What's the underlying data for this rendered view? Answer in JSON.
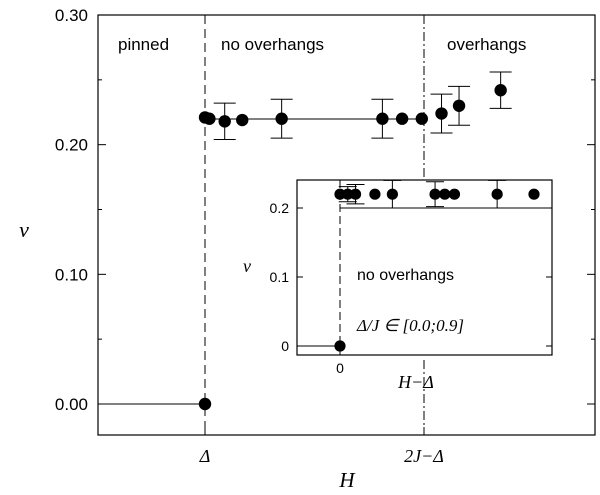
{
  "chart_data": [
    {
      "type": "scatter",
      "title": "",
      "xlabel": "H",
      "ylabel": "ν",
      "ylim": [
        0,
        0.3
      ],
      "yticks": [
        "0.00",
        "0.10",
        "0.20",
        "0.30"
      ],
      "xticks": [
        "Δ",
        "2J−Δ"
      ],
      "grid": false,
      "regions": [
        "pinned",
        "no overhangs",
        "overhangs"
      ],
      "series": [
        {
          "points": [
            {
              "x": 0.0,
              "y": 0.0
            },
            {
              "x": 0.0,
              "y": 0.221
            },
            {
              "x": 0.02,
              "y": 0.22
            },
            {
              "x": 0.09,
              "y": 0.218,
              "err": 0.014
            },
            {
              "x": 0.17,
              "y": 0.219
            },
            {
              "x": 0.35,
              "y": 0.22,
              "err": 0.015
            },
            {
              "x": 0.81,
              "y": 0.22,
              "err": 0.015
            },
            {
              "x": 0.9,
              "y": 0.22
            },
            {
              "x": 0.99,
              "y": 0.22
            },
            {
              "x": 1.08,
              "y": 0.224,
              "err": 0.015
            },
            {
              "x": 1.16,
              "y": 0.23,
              "err": 0.015
            },
            {
              "x": 1.35,
              "y": 0.242,
              "err": 0.014
            }
          ]
        }
      ]
    },
    {
      "type": "scatter",
      "title": "",
      "xlabel": "H−Δ",
      "ylabel": "ν",
      "yticks": [
        "0",
        "0.1",
        "0.2"
      ],
      "xticks": [
        "0"
      ],
      "annotation": "no overhangs",
      "parameter": "Δ/J ∈ [0.0;0.9]",
      "series": [
        {
          "points": [
            {
              "x": 0.0,
              "y": 0.0
            },
            {
              "x": 0.0,
              "y": 0.22
            },
            {
              "x": 0.04,
              "y": 0.22,
              "err": 0.011
            },
            {
              "x": 0.08,
              "y": 0.22,
              "err": 0.014
            },
            {
              "x": 0.18,
              "y": 0.22
            },
            {
              "x": 0.27,
              "y": 0.22,
              "err": 0.02
            },
            {
              "x": 0.49,
              "y": 0.22,
              "err": 0.018
            },
            {
              "x": 0.54,
              "y": 0.22
            },
            {
              "x": 0.59,
              "y": 0.22
            },
            {
              "x": 0.81,
              "y": 0.22,
              "err": 0.02
            },
            {
              "x": 1.0,
              "y": 0.22
            }
          ]
        }
      ]
    }
  ]
}
